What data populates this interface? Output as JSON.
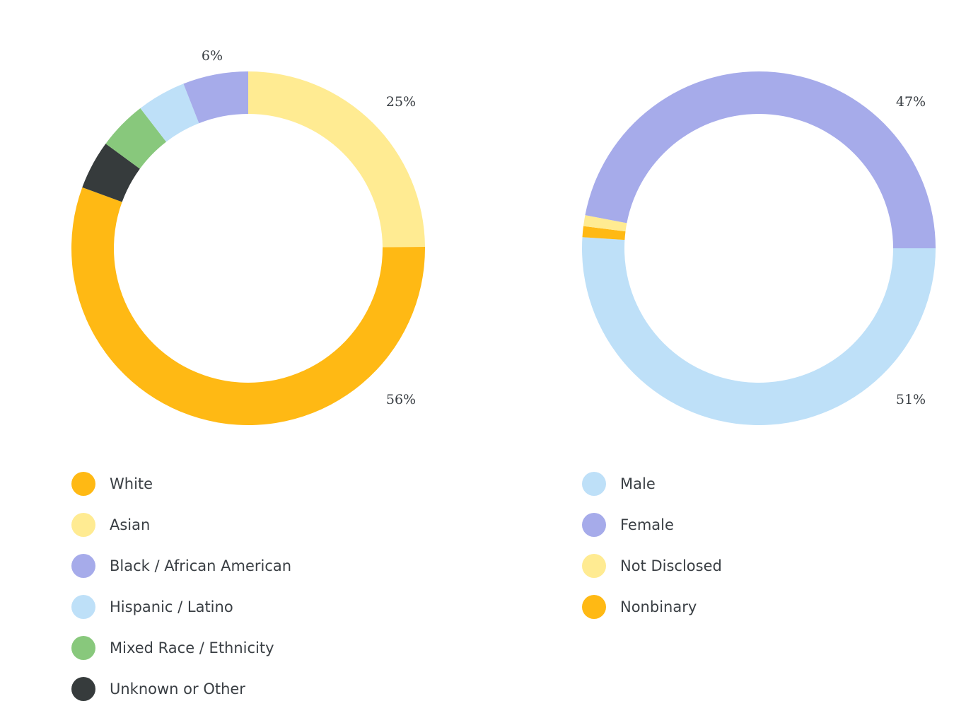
{
  "chart_data": [
    {
      "type": "pie",
      "donut": true,
      "slices": [
        {
          "label": "Asian",
          "value": 25,
          "color": "#FFEB92",
          "display": "25%"
        },
        {
          "label": "White",
          "value": 56,
          "color": "#FFB914",
          "display": "56%"
        },
        {
          "label": "Unknown or Other",
          "value": 4.5,
          "color": "#363B3C",
          "display": ""
        },
        {
          "label": "Mixed Race / Ethnicity",
          "value": 4.5,
          "color": "#88C87C",
          "display": ""
        },
        {
          "label": "Hispanic / Latino",
          "value": 4.5,
          "color": "#BEE0F8",
          "display": ""
        },
        {
          "label": "Black / African American",
          "value": 6,
          "color": "#A6ABEA",
          "display": "6%"
        }
      ],
      "legend": [
        "White",
        "Asian",
        "Black / African American",
        "Hispanic / Latino",
        "Mixed Race / Ethnicity",
        "Unknown or Other"
      ]
    },
    {
      "type": "pie",
      "donut": true,
      "slices": [
        {
          "label": "Male",
          "value": 51,
          "color": "#BEE0F8",
          "display": "51%"
        },
        {
          "label": "Nonbinary",
          "value": 1,
          "color": "#FFB914",
          "display": ""
        },
        {
          "label": "Not Disclosed",
          "value": 1,
          "color": "#FFEB92",
          "display": ""
        },
        {
          "label": "Female",
          "value": 47,
          "color": "#A6ABEA",
          "display": "47%"
        }
      ],
      "legend": [
        "Male",
        "Female",
        "Not Disclosed",
        "Nonbinary"
      ]
    }
  ]
}
